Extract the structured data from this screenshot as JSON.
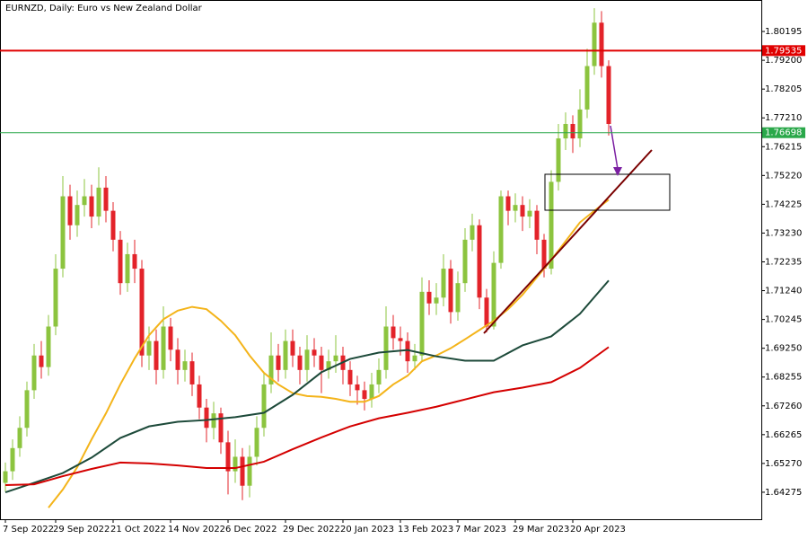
{
  "chart_data": {
    "type": "candlestick",
    "title": "EURNZD, Daily:  Euro vs New Zealand Dollar",
    "categories": [
      "7 Sep 2022",
      null,
      null,
      null,
      null,
      null,
      null,
      "29 Sep 2022",
      null,
      null,
      null,
      null,
      null,
      null,
      null,
      "21 Oct 2022",
      null,
      null,
      null,
      null,
      null,
      null,
      null,
      "14 Nov 2022",
      null,
      null,
      null,
      null,
      null,
      null,
      null,
      "6 Dec 2022",
      null,
      null,
      null,
      null,
      null,
      null,
      null,
      "29 Dec 2022",
      null,
      null,
      null,
      null,
      null,
      null,
      null,
      "20 Jan 2023",
      null,
      null,
      null,
      null,
      null,
      null,
      null,
      "13 Feb 2023",
      null,
      null,
      null,
      null,
      null,
      null,
      null,
      "7 Mar 2023",
      null,
      null,
      null,
      null,
      null,
      null,
      null,
      "29 Mar 2023",
      null,
      null,
      null,
      null,
      null,
      null,
      null,
      "20 Apr 2023",
      null,
      null,
      null,
      null,
      null
    ],
    "open": [
      1.646,
      1.65,
      1.658,
      1.665,
      1.678,
      1.69,
      1.686,
      1.7,
      1.72,
      1.745,
      1.735,
      1.742,
      1.745,
      1.738,
      1.748,
      1.74,
      1.73,
      1.715,
      1.725,
      1.72,
      1.69,
      1.695,
      1.685,
      1.7,
      1.692,
      1.685,
      1.688,
      1.68,
      1.672,
      1.665,
      1.67,
      1.66,
      1.65,
      1.655,
      1.645,
      1.655,
      1.665,
      1.68,
      1.69,
      1.685,
      1.695,
      1.69,
      1.685,
      1.692,
      1.69,
      1.685,
      1.688,
      1.69,
      1.685,
      1.68,
      1.678,
      1.675,
      1.68,
      1.685,
      1.7,
      1.696,
      1.695,
      1.688,
      1.69,
      1.712,
      1.708,
      1.71,
      1.72,
      1.705,
      1.715,
      1.73,
      1.735,
      1.71,
      1.7,
      1.722,
      1.745,
      1.74,
      1.742,
      1.738,
      1.74,
      1.73,
      1.72,
      1.75,
      1.765,
      1.77,
      1.765,
      1.775,
      1.79,
      1.805,
      1.79
    ],
    "high": [
      1.653,
      1.661,
      1.669,
      1.681,
      1.694,
      1.695,
      1.704,
      1.725,
      1.752,
      1.749,
      1.747,
      1.751,
      1.749,
      1.755,
      1.752,
      1.743,
      1.733,
      1.729,
      1.73,
      1.723,
      1.7,
      1.699,
      1.707,
      1.703,
      1.696,
      1.692,
      1.691,
      1.683,
      1.675,
      1.674,
      1.672,
      1.664,
      1.661,
      1.658,
      1.659,
      1.669,
      1.684,
      1.698,
      1.694,
      1.699,
      1.699,
      1.693,
      1.697,
      1.696,
      1.693,
      1.692,
      1.697,
      1.693,
      1.688,
      1.683,
      1.681,
      1.684,
      1.689,
      1.707,
      1.704,
      1.7,
      1.698,
      1.694,
      1.717,
      1.716,
      1.715,
      1.725,
      1.723,
      1.719,
      1.734,
      1.739,
      1.737,
      1.713,
      1.726,
      1.747,
      1.747,
      1.746,
      1.745,
      1.744,
      1.742,
      1.732,
      1.754,
      1.77,
      1.774,
      1.773,
      1.782,
      1.796,
      1.81,
      1.809,
      1.792
    ],
    "low": [
      1.643,
      1.647,
      1.655,
      1.662,
      1.675,
      1.682,
      1.683,
      1.697,
      1.717,
      1.73,
      1.731,
      1.738,
      1.734,
      1.735,
      1.736,
      1.726,
      1.711,
      1.712,
      1.715,
      1.686,
      1.685,
      1.68,
      1.682,
      1.688,
      1.68,
      1.681,
      1.676,
      1.668,
      1.66,
      1.661,
      1.656,
      1.642,
      1.646,
      1.64,
      1.641,
      1.652,
      1.662,
      1.677,
      1.681,
      1.682,
      1.686,
      1.68,
      1.681,
      1.686,
      1.677,
      1.682,
      1.684,
      1.68,
      1.676,
      1.673,
      1.671,
      1.672,
      1.677,
      1.682,
      1.692,
      1.69,
      1.684,
      1.685,
      1.688,
      1.704,
      1.704,
      1.707,
      1.701,
      1.702,
      1.712,
      1.726,
      1.706,
      1.698,
      1.699,
      1.72,
      1.735,
      1.736,
      1.733,
      1.734,
      1.725,
      1.717,
      1.718,
      1.747,
      1.761,
      1.76,
      1.762,
      1.772,
      1.787,
      1.786,
      1.766
    ],
    "close": [
      1.65,
      1.658,
      1.665,
      1.678,
      1.69,
      1.686,
      1.7,
      1.72,
      1.745,
      1.735,
      1.742,
      1.745,
      1.738,
      1.748,
      1.74,
      1.73,
      1.715,
      1.725,
      1.72,
      1.69,
      1.695,
      1.685,
      1.7,
      1.692,
      1.685,
      1.688,
      1.68,
      1.672,
      1.665,
      1.67,
      1.66,
      1.65,
      1.655,
      1.645,
      1.655,
      1.665,
      1.68,
      1.69,
      1.685,
      1.695,
      1.69,
      1.685,
      1.692,
      1.69,
      1.685,
      1.688,
      1.69,
      1.685,
      1.68,
      1.678,
      1.675,
      1.68,
      1.685,
      1.7,
      1.696,
      1.695,
      1.688,
      1.69,
      1.712,
      1.708,
      1.71,
      1.72,
      1.705,
      1.715,
      1.73,
      1.735,
      1.71,
      1.7,
      1.722,
      1.745,
      1.74,
      1.742,
      1.738,
      1.74,
      1.73,
      1.72,
      1.75,
      1.765,
      1.77,
      1.765,
      1.775,
      1.79,
      1.805,
      1.79,
      1.77
    ],
    "up_color": "#8cc43f",
    "down_color": "#e3232a",
    "series": [
      {
        "color": "#f4b41a",
        "x": [
          6,
          8,
          10,
          12,
          14,
          16,
          18,
          20,
          22,
          24,
          26,
          28,
          30,
          32,
          34,
          36,
          38,
          40,
          42,
          44,
          46,
          48,
          50,
          52,
          54,
          56,
          58,
          60,
          62,
          64,
          66,
          68,
          70,
          72,
          74,
          76,
          78,
          80,
          82,
          84
        ],
        "values": [
          1.6374,
          1.6437,
          1.6514,
          1.661,
          1.67,
          1.68,
          1.689,
          1.697,
          1.7025,
          1.7055,
          1.7068,
          1.706,
          1.702,
          1.697,
          1.69,
          1.684,
          1.68,
          1.677,
          1.676,
          1.6757,
          1.675,
          1.674,
          1.674,
          1.676,
          1.68,
          1.683,
          1.688,
          1.69,
          1.6925,
          1.6956,
          1.6988,
          1.702,
          1.706,
          1.711,
          1.717,
          1.723,
          1.7295,
          1.736,
          1.74,
          1.7438
        ]
      },
      {
        "color": "#1d4a3a",
        "x": [
          0,
          4,
          8,
          12,
          16,
          20,
          24,
          28,
          32,
          36,
          40,
          44,
          48,
          52,
          56,
          60,
          64,
          68,
          72,
          76,
          80,
          84
        ],
        "values": [
          1.6427,
          1.646,
          1.6494,
          1.6547,
          1.6615,
          1.6655,
          1.6671,
          1.6677,
          1.6687,
          1.6702,
          1.6764,
          1.6842,
          1.6888,
          1.691,
          1.6919,
          1.6897,
          1.6882,
          1.6882,
          1.6935,
          1.6966,
          1.7044,
          1.7159
        ]
      },
      {
        "color": "#d40000",
        "x": [
          0,
          4,
          8,
          12,
          16,
          20,
          24,
          28,
          32,
          36,
          40,
          44,
          48,
          52,
          56,
          60,
          64,
          68,
          72,
          76,
          80,
          84
        ],
        "values": [
          1.6452,
          1.6455,
          1.6483,
          1.6508,
          1.653,
          1.6527,
          1.652,
          1.6511,
          1.6511,
          1.6533,
          1.6576,
          1.6617,
          1.6655,
          1.6683,
          1.6702,
          1.6723,
          1.6748,
          1.6773,
          1.6789,
          1.6808,
          1.6857,
          1.6929
        ]
      }
    ],
    "hlines": [
      {
        "value": 1.79535,
        "color": "#e00000"
      },
      {
        "value": 1.76698,
        "color": "#2aa84a"
      }
    ],
    "xlim": [
      -0.75,
      105.25
    ],
    "ylim": [
      1.63342,
      1.81283
    ],
    "yticks": [
      1.80195,
      {
        "value": 1.792,
        "label": "1.79200"
      },
      1.78205,
      {
        "value": 1.7721,
        "label": "1.77210"
      },
      1.76215,
      {
        "value": 1.7522,
        "label": "1.75220"
      },
      1.74225,
      {
        "value": 1.7323,
        "label": "1.73230"
      },
      1.72235,
      {
        "value": 1.7124,
        "label": "1.71240"
      },
      1.70245,
      {
        "value": 1.6925,
        "label": "1.69250"
      },
      1.68255,
      {
        "value": 1.6726,
        "label": "1.67260"
      },
      1.66265,
      {
        "value": 1.6527,
        "label": "1.65270"
      },
      1.64275
    ]
  }
}
